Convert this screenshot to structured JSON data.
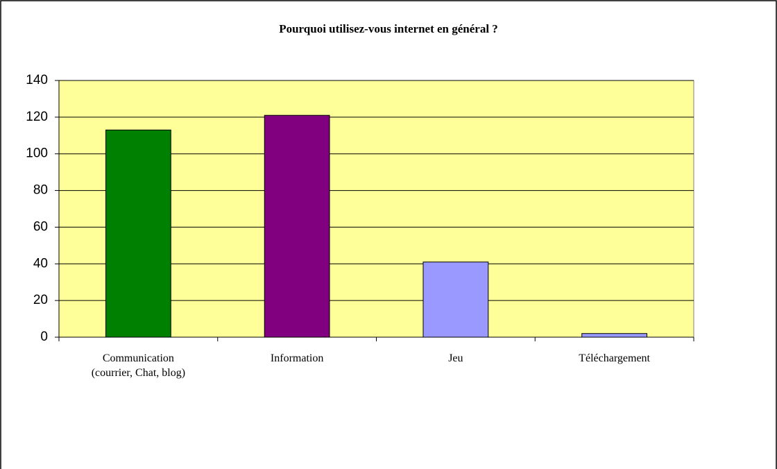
{
  "chart_data": {
    "type": "bar",
    "title": "Pourquoi utilisez-vous internet en général ?",
    "categories": [
      "Communication\n(courrier, Chat, blog)",
      "Information",
      "Jeu",
      "Téléchargement"
    ],
    "values": [
      113,
      121,
      41,
      2
    ],
    "colors": [
      "#008000",
      "#800080",
      "#9999ff",
      "#9999ff"
    ],
    "plot_background": "#ffff99",
    "ylim": [
      0,
      140
    ],
    "yticks": [
      0,
      20,
      40,
      60,
      80,
      100,
      120,
      140
    ],
    "grid": true
  }
}
